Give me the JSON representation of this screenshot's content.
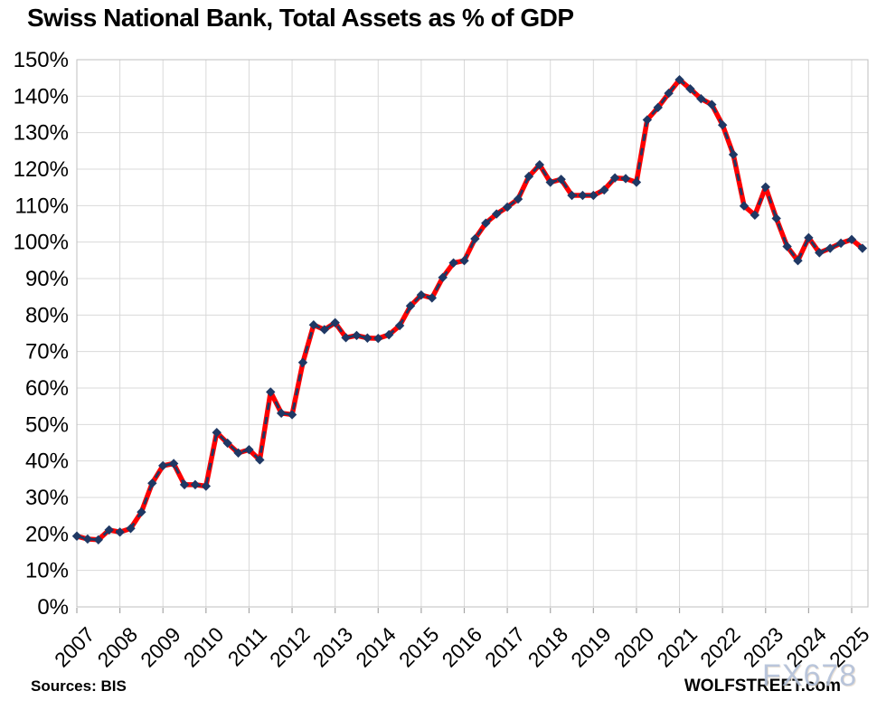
{
  "title": "Swiss National Bank, Total Assets as % of GDP",
  "footer": {
    "sources": "Sources: BIS",
    "brand": "WOLFSTREET.com",
    "watermark": "FX678"
  },
  "chart_data": {
    "type": "line",
    "title": "Swiss National Bank, Total Assets as % of GDP",
    "frequency": "quarterly",
    "x_start": "2007-Q1",
    "x_end": "2025-Q2",
    "categories": [
      "2007",
      "2008",
      "2009",
      "2010",
      "2011",
      "2012",
      "2013",
      "2014",
      "2015",
      "2016",
      "2017",
      "2018",
      "2019",
      "2020",
      "2021",
      "2022",
      "2023",
      "2024",
      "2025"
    ],
    "series": [
      {
        "name": "SNB total assets as % of GDP",
        "values": [
          19.4,
          18.6,
          18.4,
          21.1,
          20.5,
          21.5,
          26.0,
          33.9,
          38.7,
          39.3,
          33.5,
          33.5,
          33.1,
          47.8,
          44.9,
          42.2,
          43.1,
          40.3,
          58.9,
          53.1,
          52.7,
          67.0,
          77.3,
          76.0,
          77.9,
          73.8,
          74.4,
          73.7,
          73.6,
          74.6,
          77.1,
          82.5,
          85.5,
          84.7,
          90.3,
          94.3,
          94.9,
          100.9,
          105.2,
          107.7,
          109.6,
          111.8,
          118.0,
          121.2,
          116.4,
          117.2,
          112.8,
          112.8,
          112.8,
          114.3,
          117.6,
          117.4,
          116.4,
          133.5,
          136.9,
          140.8,
          144.5,
          142.0,
          139.3,
          137.7,
          132.1,
          124.0,
          109.9,
          107.4,
          115.1,
          106.5,
          98.8,
          94.9,
          101.2,
          97.1,
          98.3,
          99.7,
          100.7,
          98.3
        ]
      }
    ],
    "xlabel": "",
    "ylabel": "",
    "ylim": [
      0,
      150
    ],
    "ytick_step": 10,
    "ytick_suffix": "%",
    "grid": true,
    "legend": "none",
    "styles": {
      "line_color": "#FF0000",
      "dash_color": "#1F3864",
      "marker_color": "#1F3864",
      "grid_color": "#D9D9D9",
      "border_color": "#BFBFBF",
      "tick_color": "#A6A6A6",
      "label_color": "#000000",
      "watermark_color": "#AFBED8"
    }
  }
}
